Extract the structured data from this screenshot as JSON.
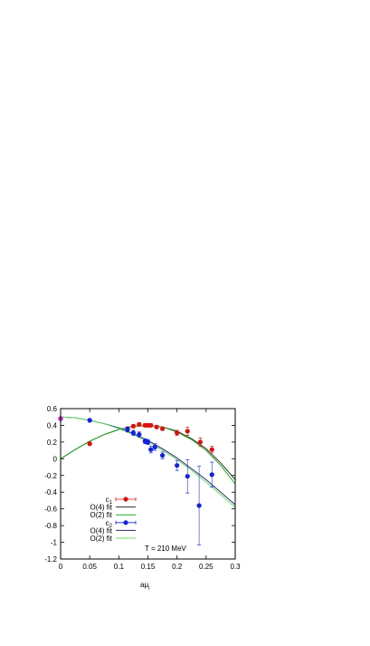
{
  "chart_data": {
    "type": "scatter",
    "xlabel_main": "aμ",
    "xlabel_sub": "l",
    "xlim": [
      0,
      0.3
    ],
    "ylim": [
      -1.2,
      0.6
    ],
    "x_ticks": [
      "0",
      "0.05",
      "0.1",
      "0.15",
      "0.2",
      "0.25",
      "0.3"
    ],
    "y_ticks": [
      "0.6",
      "0.4",
      "0.2",
      "0",
      "-0.2",
      "-0.4",
      "-0.6",
      "-0.8",
      "-1",
      "-1.2"
    ],
    "annotation": "T = 210 MeV",
    "legend_placement": "bottom-left",
    "grid": false,
    "extra_point": {
      "x": 0,
      "y": 0.48,
      "color": "#cc33cc"
    },
    "series": [
      {
        "name": "c",
        "name_sub": "1",
        "kind": "points",
        "color": "#dd1111",
        "points": [
          {
            "x": 0.0,
            "y": 0.48,
            "err": 0.01
          },
          {
            "x": 0.05,
            "y": 0.18,
            "err": 0.02
          },
          {
            "x": 0.115,
            "y": 0.36,
            "err": 0.02
          },
          {
            "x": 0.125,
            "y": 0.39,
            "err": 0.02
          },
          {
            "x": 0.135,
            "y": 0.41,
            "err": 0.02
          },
          {
            "x": 0.145,
            "y": 0.4,
            "err": 0.02
          },
          {
            "x": 0.15,
            "y": 0.4,
            "err": 0.02
          },
          {
            "x": 0.155,
            "y": 0.4,
            "err": 0.02
          },
          {
            "x": 0.165,
            "y": 0.38,
            "err": 0.02
          },
          {
            "x": 0.175,
            "y": 0.36,
            "err": 0.02
          },
          {
            "x": 0.2,
            "y": 0.31,
            "err": 0.03
          },
          {
            "x": 0.218,
            "y": 0.33,
            "err": 0.05
          },
          {
            "x": 0.24,
            "y": 0.2,
            "err": 0.05
          },
          {
            "x": 0.26,
            "y": 0.11,
            "err": 0.04
          }
        ]
      },
      {
        "name": "O(4) fit",
        "kind": "line",
        "color": "#2d2d2d",
        "x": [
          0,
          0.025,
          0.05,
          0.075,
          0.1,
          0.125,
          0.15,
          0.175,
          0.2,
          0.225,
          0.25,
          0.275,
          0.3
        ],
        "y": [
          0.0,
          0.11,
          0.21,
          0.29,
          0.35,
          0.39,
          0.4,
          0.38,
          0.33,
          0.24,
          0.12,
          -0.05,
          -0.25
        ]
      },
      {
        "name": "O(2) fit",
        "kind": "line",
        "color": "#22aa22",
        "x": [
          0,
          0.025,
          0.05,
          0.075,
          0.1,
          0.125,
          0.15,
          0.175,
          0.2,
          0.225,
          0.25,
          0.275,
          0.3
        ],
        "y": [
          0.0,
          0.11,
          0.21,
          0.29,
          0.35,
          0.39,
          0.4,
          0.38,
          0.32,
          0.23,
          0.1,
          -0.08,
          -0.3
        ]
      },
      {
        "name": "c",
        "name_sub": "2",
        "kind": "points",
        "color": "#1122dd",
        "points": [
          {
            "x": 0.05,
            "y": 0.46,
            "err": 0.02
          },
          {
            "x": 0.115,
            "y": 0.35,
            "err": 0.03
          },
          {
            "x": 0.125,
            "y": 0.31,
            "err": 0.03
          },
          {
            "x": 0.135,
            "y": 0.29,
            "err": 0.03
          },
          {
            "x": 0.145,
            "y": 0.21,
            "err": 0.03
          },
          {
            "x": 0.15,
            "y": 0.2,
            "err": 0.03
          },
          {
            "x": 0.155,
            "y": 0.11,
            "err": 0.04
          },
          {
            "x": 0.162,
            "y": 0.14,
            "err": 0.04
          },
          {
            "x": 0.175,
            "y": 0.04,
            "err": 0.04
          },
          {
            "x": 0.2,
            "y": -0.08,
            "err": 0.06
          },
          {
            "x": 0.218,
            "y": -0.21,
            "err": 0.2
          },
          {
            "x": 0.238,
            "y": -0.56,
            "err": 0.47
          },
          {
            "x": 0.26,
            "y": -0.19,
            "err": 0.15
          }
        ]
      },
      {
        "name": "O(4) fit",
        "kind": "line",
        "color": "#2a2a6a",
        "x": [
          0,
          0.025,
          0.05,
          0.075,
          0.1,
          0.125,
          0.15,
          0.175,
          0.2,
          0.225,
          0.25,
          0.275,
          0.3
        ],
        "y": [
          0.5,
          0.49,
          0.46,
          0.42,
          0.37,
          0.3,
          0.22,
          0.12,
          0.01,
          -0.12,
          -0.25,
          -0.4,
          -0.55
        ]
      },
      {
        "name": "O(2) fit",
        "kind": "line",
        "color": "#66dd66",
        "x": [
          0,
          0.025,
          0.05,
          0.075,
          0.1,
          0.125,
          0.15,
          0.175,
          0.2,
          0.225,
          0.25,
          0.275,
          0.3
        ],
        "y": [
          0.5,
          0.49,
          0.46,
          0.42,
          0.36,
          0.29,
          0.2,
          0.1,
          -0.01,
          -0.14,
          -0.28,
          -0.43,
          -0.58
        ]
      }
    ]
  }
}
